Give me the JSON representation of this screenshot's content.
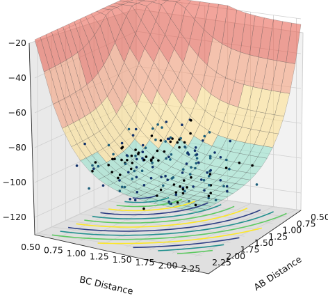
{
  "chart_data": {
    "type": "surface",
    "xlabel": "BC Distance",
    "ylabel": "AB Distance",
    "x_ticks": [
      "0.50",
      "0.75",
      "1.00",
      "1.25",
      "1.50",
      "1.75",
      "2.00",
      "2.25"
    ],
    "y_ticks": [
      "2.25",
      "2.00",
      "1.75",
      "1.50",
      "1.25",
      "1.00",
      "0.75",
      "0.50"
    ],
    "z_ticks": [
      "−20",
      "−40",
      "−60",
      "−80",
      "−100",
      "−120"
    ],
    "xlim": [
      0.5,
      2.3
    ],
    "ylim": [
      0.5,
      2.3
    ],
    "zlim": [
      -130,
      -20
    ],
    "grid": true,
    "colormap_surface": "jet",
    "colormap_contour": "viridis",
    "trajectory_colors": [
      "#000000",
      "#10306a",
      "#1d5e7a"
    ],
    "surface_colors": [
      "#3aa0e8",
      "#8fe0c8",
      "#ffe08a",
      "#f59a74",
      "#e85a48"
    ],
    "contour_colors": [
      "#2d3e83",
      "#21908d",
      "#5ec962",
      "#fde725"
    ]
  }
}
